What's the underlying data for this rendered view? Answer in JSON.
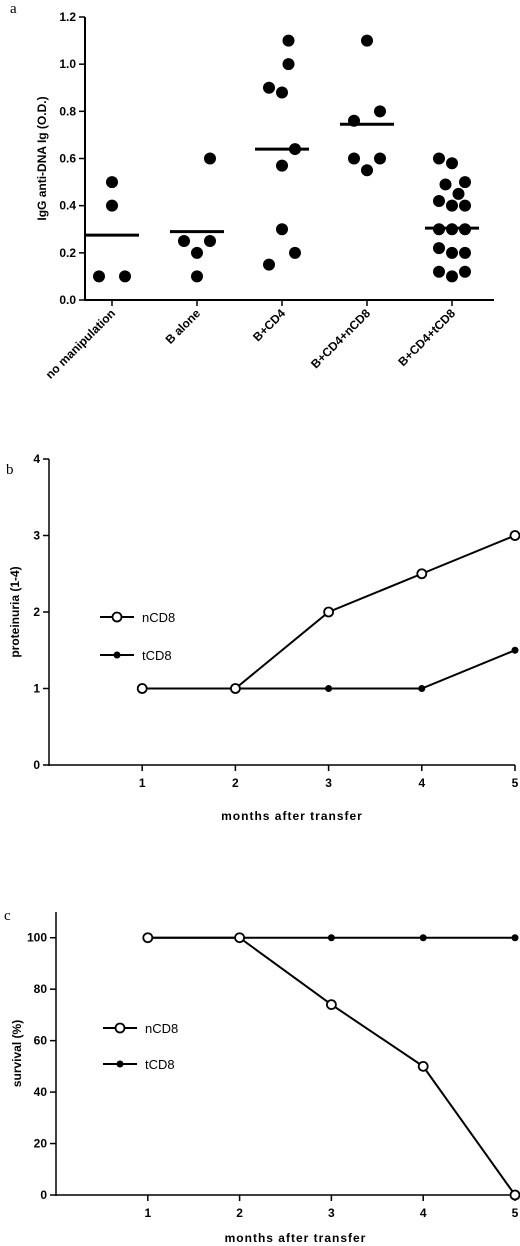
{
  "chart_data": [
    {
      "panel": "a",
      "type": "scatter",
      "ylabel": "IgG anti-DNA Ig (O.D.)",
      "xlabel": "",
      "ylim": [
        0,
        1.2
      ],
      "yticks": [
        "0.0",
        "0.2",
        "0.4",
        "0.6",
        "0.8",
        "1.0",
        "1.2"
      ],
      "categories": [
        "no manipulation",
        "B alone",
        "B+CD4",
        "B+CD4+nCD8",
        "B+CD4+tCD8"
      ],
      "groups": [
        {
          "category": "no manipulation",
          "mean": 0.275,
          "points": [
            {
              "dx": 0,
              "y": 0.5
            },
            {
              "dx": 0,
              "y": 0.4
            },
            {
              "dx": -1,
              "y": 0.1
            },
            {
              "dx": 1,
              "y": 0.1
            }
          ]
        },
        {
          "category": "B alone",
          "mean": 0.29,
          "points": [
            {
              "dx": 1,
              "y": 0.6
            },
            {
              "dx": -1,
              "y": 0.25
            },
            {
              "dx": 1,
              "y": 0.25
            },
            {
              "dx": 0,
              "y": 0.2
            },
            {
              "dx": 0,
              "y": 0.1
            }
          ]
        },
        {
          "category": "B+CD4",
          "mean": 0.64,
          "points": [
            {
              "dx": 0.5,
              "y": 1.1
            },
            {
              "dx": 0.5,
              "y": 1.0
            },
            {
              "dx": -1,
              "y": 0.9
            },
            {
              "dx": 0,
              "y": 0.88
            },
            {
              "dx": 1,
              "y": 0.64
            },
            {
              "dx": 0,
              "y": 0.57
            },
            {
              "dx": 0,
              "y": 0.3
            },
            {
              "dx": 1,
              "y": 0.2
            },
            {
              "dx": -1,
              "y": 0.15
            }
          ]
        },
        {
          "category": "B+CD4+nCD8",
          "mean": 0.745,
          "points": [
            {
              "dx": 0,
              "y": 1.1
            },
            {
              "dx": 1,
              "y": 0.8
            },
            {
              "dx": -1,
              "y": 0.76
            },
            {
              "dx": -1,
              "y": 0.6
            },
            {
              "dx": 1,
              "y": 0.6
            },
            {
              "dx": 0,
              "y": 0.55
            }
          ]
        },
        {
          "category": "B+CD4+tCD8",
          "mean": 0.305,
          "points": [
            {
              "dx": -1,
              "y": 0.6
            },
            {
              "dx": 0,
              "y": 0.58
            },
            {
              "dx": 1,
              "y": 0.5
            },
            {
              "dx": -0.5,
              "y": 0.49
            },
            {
              "dx": 0.5,
              "y": 0.45
            },
            {
              "dx": -1,
              "y": 0.42
            },
            {
              "dx": 0,
              "y": 0.4
            },
            {
              "dx": 1,
              "y": 0.4
            },
            {
              "dx": -1,
              "y": 0.3
            },
            {
              "dx": 0,
              "y": 0.3
            },
            {
              "dx": 1,
              "y": 0.3
            },
            {
              "dx": -1,
              "y": 0.22
            },
            {
              "dx": 0,
              "y": 0.2
            },
            {
              "dx": 1,
              "y": 0.2
            },
            {
              "dx": -1,
              "y": 0.12
            },
            {
              "dx": 0,
              "y": 0.1
            },
            {
              "dx": 1,
              "y": 0.12
            }
          ]
        }
      ]
    },
    {
      "panel": "b",
      "type": "line",
      "ylabel": "proteinuria (1-4)",
      "xlabel": "months after transfer",
      "x": [
        1,
        2,
        3,
        4,
        5
      ],
      "xlim": [
        0,
        5
      ],
      "ylim": [
        0,
        4
      ],
      "xticks": [
        "1",
        "2",
        "3",
        "4",
        "5"
      ],
      "yticks": [
        "0",
        "1",
        "2",
        "3",
        "4"
      ],
      "legend": "left",
      "series": [
        {
          "name": "nCD8",
          "marker": "open-circle",
          "values": [
            1,
            1,
            2,
            2.5,
            3
          ]
        },
        {
          "name": "tCD8",
          "marker": "filled-dot",
          "values": [
            1,
            1,
            1,
            1,
            1.5
          ]
        }
      ]
    },
    {
      "panel": "c",
      "type": "line",
      "ylabel": "survival (%)",
      "xlabel": "months after transfer",
      "x": [
        1,
        2,
        3,
        4,
        5
      ],
      "xlim": [
        0,
        5
      ],
      "ylim": [
        0,
        110
      ],
      "xticks": [
        "1",
        "2",
        "3",
        "4",
        "5"
      ],
      "yticks": [
        "0",
        "20",
        "40",
        "60",
        "80",
        "100"
      ],
      "legend": "left",
      "series": [
        {
          "name": "nCD8",
          "marker": "open-circle",
          "values": [
            100,
            100,
            74,
            50,
            0
          ]
        },
        {
          "name": "tCD8",
          "marker": "filled-dot",
          "values": [
            100,
            100,
            100,
            100,
            100
          ]
        }
      ]
    }
  ]
}
